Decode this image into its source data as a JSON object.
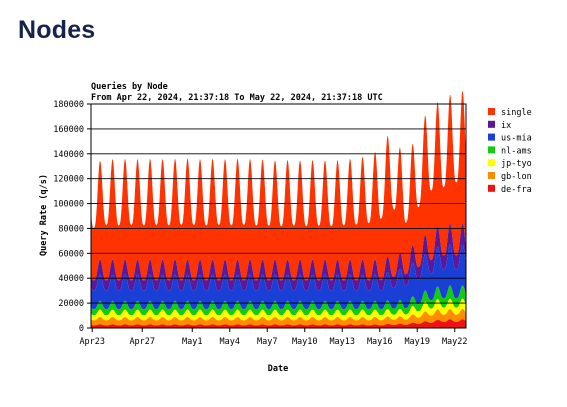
{
  "page": {
    "title": "Nodes"
  },
  "chart_data": {
    "type": "area",
    "stacked": true,
    "title": "Queries by Node",
    "subtitle": "From Apr 22, 2024, 21:37:18 To May 22, 2024, 21:37:18 UTC",
    "xlabel": "Date",
    "ylabel": "Query Rate (q/s)",
    "ylim": [
      0,
      180000
    ],
    "yticks": [
      0,
      20000,
      40000,
      60000,
      80000,
      100000,
      120000,
      140000,
      160000,
      180000
    ],
    "ytick_labels": [
      "0",
      "20000",
      "40000",
      "60000",
      "80000",
      "100000",
      "120000",
      "140000",
      "160000",
      "180000"
    ],
    "xlim": [
      "2024-04-22 21:37",
      "2024-05-22 21:37"
    ],
    "xticks": [
      "2024-04-23",
      "2024-04-27",
      "2024-05-01",
      "2024-05-04",
      "2024-05-07",
      "2024-05-10",
      "2024-05-13",
      "2024-05-16",
      "2024-05-19",
      "2024-05-22"
    ],
    "xtick_labels": [
      "Apr23",
      "Apr27",
      "May1",
      "May4",
      "May7",
      "May10",
      "May13",
      "May16",
      "May19",
      "May22"
    ],
    "grid": "horizontal",
    "legend_position": "right",
    "x": [
      "2024-04-23",
      "2024-04-24",
      "2024-04-25",
      "2024-04-26",
      "2024-04-27",
      "2024-04-28",
      "2024-04-29",
      "2024-04-30",
      "2024-05-01",
      "2024-05-02",
      "2024-05-03",
      "2024-05-04",
      "2024-05-05",
      "2024-05-06",
      "2024-05-07",
      "2024-05-08",
      "2024-05-09",
      "2024-05-10",
      "2024-05-11",
      "2024-05-12",
      "2024-05-13",
      "2024-05-14",
      "2024-05-15",
      "2024-05-16",
      "2024-05-17",
      "2024-05-18",
      "2024-05-19",
      "2024-05-20",
      "2024-05-21",
      "2024-05-22"
    ],
    "series": [
      {
        "name": "de-fra",
        "color": "#ee1111",
        "values": [
          2500,
          2500,
          2500,
          2500,
          2500,
          2500,
          2500,
          2500,
          2500,
          2500,
          2500,
          2500,
          2500,
          2500,
          2500,
          2500,
          2500,
          2500,
          2500,
          2500,
          2500,
          2500,
          2500,
          2500,
          3000,
          3000,
          4000,
          5000,
          6000,
          6000
        ]
      },
      {
        "name": "gb-lon",
        "color": "#ff8c00",
        "values": [
          5000,
          5000,
          5000,
          5000,
          5000,
          5000,
          5000,
          5000,
          5000,
          5000,
          5000,
          5000,
          5000,
          5000,
          5000,
          5000,
          5000,
          5000,
          5000,
          5000,
          5000,
          5000,
          5000,
          5000,
          5000,
          5000,
          6000,
          7000,
          7000,
          7000
        ]
      },
      {
        "name": "jp-tyo",
        "color": "#ffff00",
        "values": [
          5000,
          5000,
          5000,
          5000,
          5000,
          5000,
          5000,
          5000,
          5000,
          5000,
          5000,
          5000,
          5000,
          5000,
          5000,
          5000,
          5000,
          5000,
          5000,
          5000,
          5000,
          5000,
          5000,
          5000,
          5000,
          5000,
          6000,
          7000,
          7000,
          7000
        ]
      },
      {
        "name": "nl-ams",
        "color": "#11cc11",
        "values": [
          6000,
          6000,
          6000,
          6000,
          6000,
          6000,
          6000,
          6000,
          6000,
          6000,
          6000,
          6000,
          6000,
          6000,
          6000,
          6000,
          6000,
          6000,
          6000,
          6000,
          6000,
          6000,
          6000,
          6000,
          6000,
          6000,
          7000,
          8000,
          9000,
          9000
        ]
      },
      {
        "name": "us-mia",
        "color": "#1a3fd6",
        "values": [
          18000,
          18000,
          18000,
          18000,
          18000,
          18000,
          18000,
          18000,
          18000,
          18000,
          18000,
          18000,
          18000,
          18000,
          18000,
          18000,
          18000,
          18000,
          18000,
          18000,
          18000,
          18000,
          18000,
          18000,
          20000,
          22000,
          24000,
          26000,
          28000,
          28000
        ]
      },
      {
        "name": "ix",
        "color": "#5a189a",
        "values": [
          10000,
          10000,
          10000,
          10000,
          10000,
          10000,
          10000,
          10000,
          10000,
          10000,
          10000,
          10000,
          10000,
          10000,
          10000,
          10000,
          10000,
          10000,
          10000,
          10000,
          10000,
          10000,
          10000,
          10000,
          11000,
          11000,
          12000,
          13000,
          14000,
          14000
        ]
      },
      {
        "name": "single",
        "color": "#ff3300",
        "values": [
          70000,
          70000,
          70000,
          70000,
          70000,
          70000,
          70000,
          70000,
          70000,
          70000,
          70000,
          70000,
          70000,
          70000,
          70000,
          70000,
          70000,
          70000,
          70000,
          70000,
          70000,
          70000,
          70000,
          70000,
          78000,
          88000,
          85000,
          86000,
          90000,
          92000
        ]
      }
    ],
    "daily_peak_total": [
      123000,
      128000,
      127000,
      128000,
      127000,
      128000,
      127000,
      128000,
      128000,
      127000,
      128000,
      127000,
      128000,
      127000,
      127000,
      126000,
      127000,
      126000,
      127000,
      126000,
      127000,
      128000,
      130000,
      135000,
      152000,
      126000,
      145000,
      168000,
      170000,
      178000
    ],
    "legend_order": [
      "single",
      "ix",
      "us-mia",
      "nl-ams",
      "jp-tyo",
      "gb-lon",
      "de-fra"
    ]
  }
}
